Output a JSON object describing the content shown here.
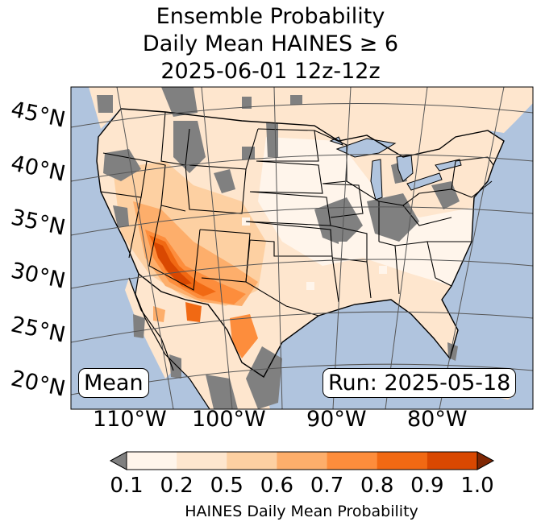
{
  "title": {
    "line1": "Ensemble Probability",
    "line2": "Daily Mean HAINES ≥ 6",
    "line3": "2025-06-01 12z-12z"
  },
  "map": {
    "region": "Continental United States",
    "latitude_labels": [
      "45°N",
      "40°N",
      "35°N",
      "30°N",
      "25°N",
      "20°N"
    ],
    "longitude_labels": [
      "110°W",
      "100°W",
      "90°W",
      "80°W"
    ],
    "left_box": "Mean",
    "right_box": "Run: 2025-05-18",
    "colors": {
      "ocean": "#b0c4de",
      "no_data_gray": "#808080",
      "prob_0_1": "#fff5eb",
      "prob_0_2": "#fee6ce",
      "prob_0_5": "#fdd0a2",
      "prob_0_6": "#fdae6b",
      "prob_0_7": "#fd8d3c",
      "prob_0_8": "#f16913",
      "prob_0_9": "#d94801"
    }
  },
  "colorbar": {
    "ticks": [
      "0.1",
      "0.2",
      "0.5",
      "0.6",
      "0.7",
      "0.8",
      "0.9",
      "1.0"
    ],
    "label": "HAINES Daily Mean Probability",
    "colors": [
      "#fff5eb",
      "#fee6ce",
      "#fdd0a2",
      "#fdae6b",
      "#fd8d3c",
      "#f16913",
      "#d94801"
    ],
    "under_color": "#808080",
    "over_color": "#7f2704"
  }
}
